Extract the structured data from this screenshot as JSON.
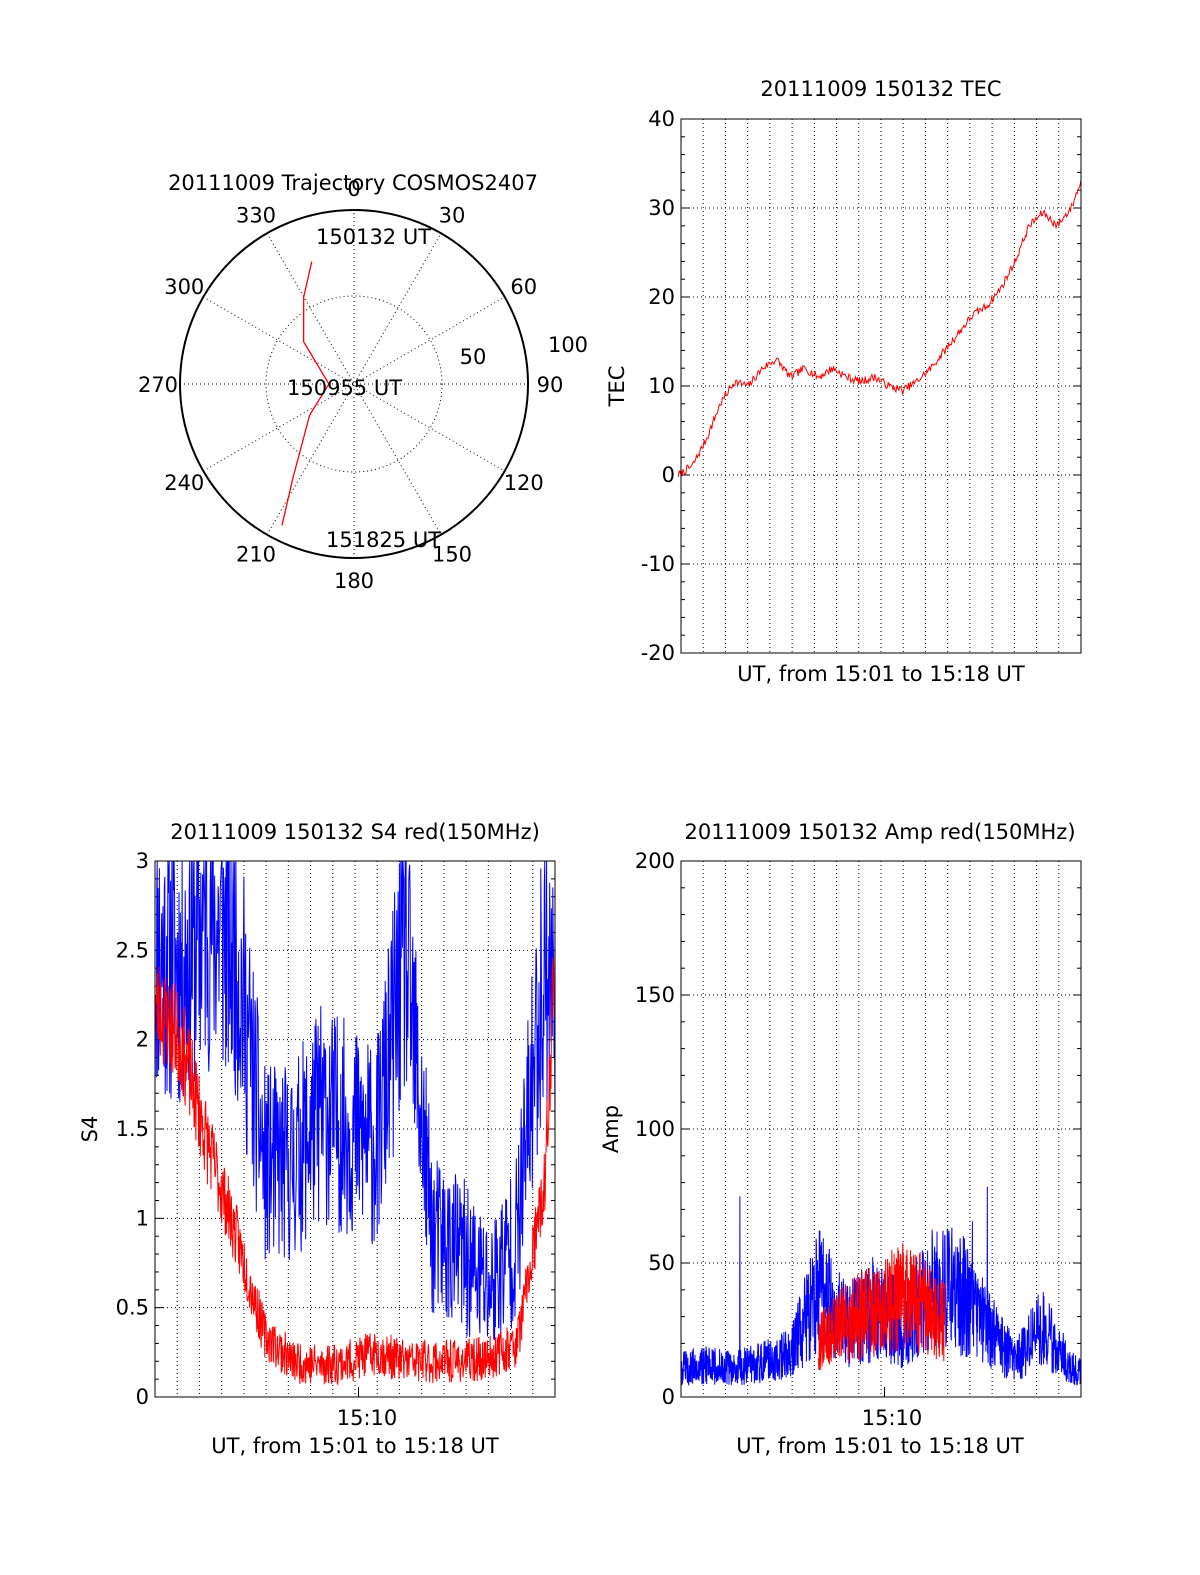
{
  "chart_data": [
    {
      "type": "polar",
      "title": "20111009 Trajectory COSMOS2407",
      "angle_labels": [
        "0",
        "30",
        "60",
        "90",
        "120",
        "150",
        "180",
        "210",
        "240",
        "270",
        "300",
        "330"
      ],
      "radial_labels": [
        "50",
        "100"
      ],
      "time_labels": [
        "150132 UT",
        "150955 UT",
        "151825 UT"
      ],
      "colors": {
        "trajectory": "#ff0000"
      },
      "trajectory": [
        {
          "az": 341,
          "elev": 23
        },
        {
          "az": 330,
          "elev": 38
        },
        {
          "az": 310,
          "elev": 56
        },
        {
          "az": 270,
          "elev": 77
        },
        {
          "az": 235,
          "elev": 62
        },
        {
          "az": 213,
          "elev": 32
        },
        {
          "az": 207,
          "elev": 8
        }
      ]
    },
    {
      "type": "line",
      "title": "20111009 150132 TEC",
      "xlabel": "UT, from 15:01 to 15:18 UT",
      "ylabel": "TEC",
      "xlim": [
        15.022,
        15.307
      ],
      "ylim": [
        -20,
        40
      ],
      "yticks": [
        "-20",
        "-10",
        "0",
        "10",
        "20",
        "30",
        "40"
      ],
      "grid": true,
      "colors": {
        "series": "#ff0000"
      },
      "x": [
        15.02,
        15.03,
        15.04,
        15.05,
        15.06,
        15.07,
        15.08,
        15.09,
        15.1,
        15.11,
        15.12,
        15.13,
        15.14,
        15.15,
        15.16,
        15.17,
        15.18,
        15.19,
        15.2,
        15.21,
        15.22,
        15.23,
        15.24,
        15.25,
        15.26,
        15.27,
        15.28,
        15.29,
        15.3,
        15.307
      ],
      "y": [
        0,
        1,
        4,
        8,
        10.5,
        10,
        12,
        13,
        11,
        12,
        11,
        12,
        11,
        10.5,
        11,
        10,
        9.5,
        10.5,
        12,
        14,
        16,
        18,
        19,
        21,
        24,
        28,
        29.5,
        28,
        30,
        33
      ]
    },
    {
      "type": "line",
      "title": "20111009 150132 S4 red(150MHz)",
      "xlabel": "UT, from 15:01 to 15:18 UT",
      "ylabel": "S4",
      "xlim": [
        15.022,
        15.307
      ],
      "ylim": [
        0,
        3
      ],
      "yticks": [
        "0",
        "0.5",
        "1",
        "1.5",
        "2",
        "2.5",
        "3"
      ],
      "xticks": [
        {
          "value": 15.167,
          "label": "15:10"
        }
      ],
      "grid": true,
      "colors": {
        "red": "#ff0000",
        "blue": "#0000ff"
      },
      "series": [
        {
          "color": "blue",
          "x": [
            15.022,
            15.04,
            15.06,
            15.08,
            15.1,
            15.12,
            15.14,
            15.16,
            15.18,
            15.2,
            15.22,
            15.24,
            15.26,
            15.28,
            15.3,
            15.307
          ],
          "values": [
            2.5,
            2.4,
            2.7,
            2.5,
            1.3,
            1.3,
            1.6,
            1.5,
            1.4,
            2.5,
            0.9,
            0.8,
            0.6,
            0.9,
            2.5,
            2.2
          ]
        },
        {
          "color": "red",
          "x": [
            15.022,
            15.04,
            15.06,
            15.08,
            15.1,
            15.12,
            15.14,
            15.16,
            15.18,
            15.2,
            15.22,
            15.24,
            15.26,
            15.28,
            15.3,
            15.307
          ],
          "values": [
            2.2,
            2.0,
            1.4,
            0.9,
            0.35,
            0.2,
            0.18,
            0.2,
            0.25,
            0.2,
            0.2,
            0.2,
            0.22,
            0.3,
            1.2,
            2.5
          ]
        }
      ]
    },
    {
      "type": "line",
      "title": "20111009 150132 Amp red(150MHz)",
      "xlabel": "UT, from 15:01 to 15:18 UT",
      "ylabel": "Amp",
      "xlim": [
        15.022,
        15.307
      ],
      "ylim": [
        0,
        200
      ],
      "yticks": [
        "0",
        "50",
        "100",
        "150",
        "200"
      ],
      "xticks": [
        {
          "value": 15.167,
          "label": "15:10"
        }
      ],
      "grid": true,
      "colors": {
        "red": "#ff0000",
        "blue": "#0000ff"
      },
      "series": [
        {
          "color": "blue",
          "x": [
            15.022,
            15.04,
            15.06,
            15.08,
            15.1,
            15.12,
            15.14,
            15.16,
            15.18,
            15.2,
            15.22,
            15.24,
            15.26,
            15.28,
            15.3,
            15.307
          ],
          "values": [
            8,
            9,
            8,
            10,
            12,
            30,
            20,
            25,
            20,
            30,
            30,
            20,
            10,
            20,
            8,
            7
          ]
        },
        {
          "color": "red",
          "x": [
            15.12,
            15.13,
            15.14,
            15.15,
            15.16,
            15.17,
            15.18,
            15.19,
            15.2,
            15.21
          ],
          "values": [
            20,
            24,
            28,
            30,
            32,
            35,
            38,
            36,
            32,
            28
          ]
        }
      ]
    }
  ]
}
